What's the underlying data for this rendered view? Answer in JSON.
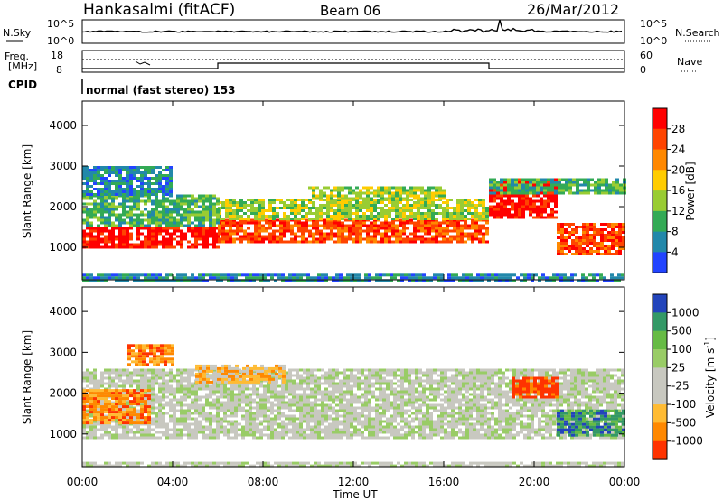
{
  "header": {
    "station": "Hankasalmi (fitACF)",
    "beam": "Beam 06",
    "date": "26/Mar/2012"
  },
  "noise_panel": {
    "left_label": "N.Sky",
    "right_label": "N.Search",
    "left_ticks": [
      "10^5",
      "10^0"
    ],
    "right_ticks": [
      "10^5",
      "10^0"
    ]
  },
  "freq_panel": {
    "left_label_1": "Freq.",
    "left_label_2": "[MHz]",
    "left_ticks": [
      "18",
      "8"
    ],
    "right_ticks": [
      "60",
      "0"
    ],
    "right_label": "Nave"
  },
  "cpid": {
    "label": "CPID",
    "mode": "normal (fast stereo) 153"
  },
  "chart_data": [
    {
      "type": "heatmap",
      "panel": "power",
      "ylabel": "Slant Range [km]",
      "yticks": [
        1000,
        2000,
        3000,
        4000
      ],
      "ylim": [
        200,
        4600
      ],
      "colorbar_label": "Power [dB]",
      "colorbar_ticks": [
        "28",
        "24",
        "20",
        "16",
        "12",
        "8",
        "4"
      ],
      "colors": [
        "#ff0000",
        "#ff4400",
        "#ff8800",
        "#ffcc00",
        "#99cc33",
        "#33aa55",
        "#2288aa",
        "#2244ff"
      ],
      "bands": [
        {
          "t0": 0.0,
          "t1": 6.0,
          "r0": 1000,
          "r1": 1500,
          "level": 0
        },
        {
          "t0": 6.0,
          "t1": 18.0,
          "r0": 1100,
          "r1": 1700,
          "level": 1
        },
        {
          "t0": 6.0,
          "t1": 18.0,
          "r0": 1700,
          "r1": 2200,
          "level": 4
        },
        {
          "t0": 0.0,
          "t1": 6.0,
          "r0": 1500,
          "r1": 2300,
          "level": 5
        },
        {
          "t0": 0.0,
          "t1": 4.0,
          "r0": 2300,
          "r1": 3000,
          "level": 6
        },
        {
          "t0": 18.0,
          "t1": 21.0,
          "r0": 1700,
          "r1": 2700,
          "level": 0
        },
        {
          "t0": 21.0,
          "t1": 24.0,
          "r0": 800,
          "r1": 1600,
          "level": 1
        },
        {
          "t0": 18.0,
          "t1": 24.0,
          "r0": 2300,
          "r1": 2700,
          "level": 5
        },
        {
          "t0": 10.0,
          "t1": 16.0,
          "r0": 2200,
          "r1": 2500,
          "level": 4
        },
        {
          "t0": 0.0,
          "t1": 24.0,
          "r0": 200,
          "r1": 350,
          "level": 6
        }
      ]
    },
    {
      "type": "heatmap",
      "panel": "velocity",
      "ylabel": "Slant Range [km]",
      "yticks": [
        1000,
        2000,
        3000,
        4000
      ],
      "ylim": [
        200,
        4600
      ],
      "xlabel": "Time UT",
      "xticks": [
        "00:00",
        "04:00",
        "08:00",
        "12:00",
        "16:00",
        "20:00",
        "00:00"
      ],
      "xlim": [
        0,
        24
      ],
      "colorbar_label": "Velocity [m s",
      "colorbar_label_sup": "-1",
      "colorbar_label_end": "]",
      "colorbar_ticks": [
        "1000",
        "500",
        "100",
        "25",
        "-25",
        "-100",
        "-500",
        "-1000"
      ],
      "colors": [
        "#2244bb",
        "#339966",
        "#66bb44",
        "#99cc66",
        "#c8c8c0",
        "#c8c8c0",
        "#ffbb33",
        "#ff8800",
        "#ff3300"
      ],
      "bands": [
        {
          "t0": 0.0,
          "t1": 24.0,
          "r0": 900,
          "r1": 2600,
          "level": 4
        },
        {
          "t0": 0.0,
          "t1": 3.0,
          "r0": 1300,
          "r1": 2100,
          "level": 7
        },
        {
          "t0": 2.0,
          "t1": 4.0,
          "r0": 2700,
          "r1": 3200,
          "level": 7
        },
        {
          "t0": 19.0,
          "t1": 21.0,
          "r0": 1900,
          "r1": 2400,
          "level": 8
        },
        {
          "t0": 21.0,
          "t1": 24.0,
          "r0": 1000,
          "r1": 1600,
          "level": 1
        },
        {
          "t0": 5.0,
          "t1": 9.0,
          "r0": 2300,
          "r1": 2700,
          "level": 6
        },
        {
          "t0": 0.0,
          "t1": 24.0,
          "r0": 200,
          "r1": 320,
          "level": 4
        }
      ]
    }
  ]
}
